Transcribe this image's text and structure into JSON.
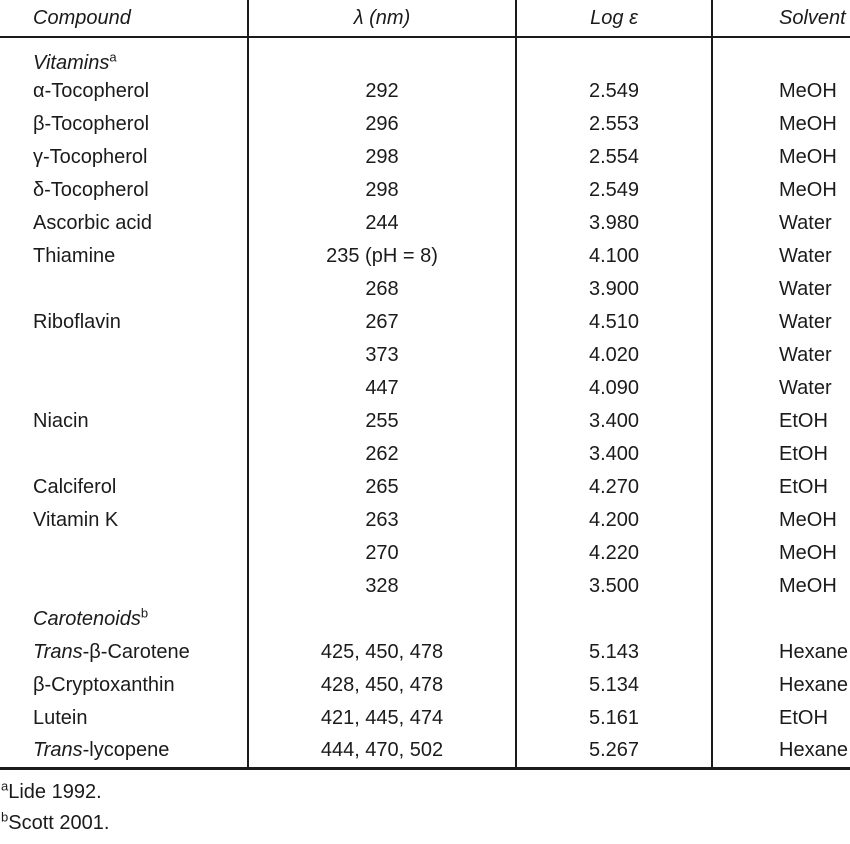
{
  "table": {
    "columns": [
      "Compound",
      "λ (nm)",
      "Log ε",
      "Solvent"
    ],
    "rows": [
      {
        "compound_italic": "Vitamins",
        "marker": "a",
        "compound": "",
        "lambda": "",
        "log_epsilon": "",
        "solvent": ""
      },
      {
        "compound": "α-Tocopherol",
        "lambda": "292",
        "log_epsilon": "2.549",
        "solvent": "MeOH"
      },
      {
        "compound": "β-Tocopherol",
        "lambda": "296",
        "log_epsilon": "2.553",
        "solvent": "MeOH"
      },
      {
        "compound": "γ-Tocopherol",
        "lambda": "298",
        "log_epsilon": "2.554",
        "solvent": "MeOH"
      },
      {
        "compound": "δ-Tocopherol",
        "lambda": "298",
        "log_epsilon": "2.549",
        "solvent": "MeOH"
      },
      {
        "compound": "Ascorbic acid",
        "lambda": "244",
        "log_epsilon": "3.980",
        "solvent": "Water"
      },
      {
        "compound": "Thiamine",
        "lambda": "235 (pH = 8)",
        "log_epsilon": "4.100",
        "solvent": "Water"
      },
      {
        "compound": "",
        "lambda": "268",
        "log_epsilon": "3.900",
        "solvent": "Water"
      },
      {
        "compound": "Riboflavin",
        "lambda": "267",
        "log_epsilon": "4.510",
        "solvent": "Water"
      },
      {
        "compound": "",
        "lambda": "373",
        "log_epsilon": "4.020",
        "solvent": "Water"
      },
      {
        "compound": "",
        "lambda": "447",
        "log_epsilon": "4.090",
        "solvent": "Water"
      },
      {
        "compound": "Niacin",
        "lambda": "255",
        "log_epsilon": "3.400",
        "solvent": "EtOH"
      },
      {
        "compound": "",
        "lambda": "262",
        "log_epsilon": "3.400",
        "solvent": "EtOH"
      },
      {
        "compound": "Calciferol",
        "lambda": "265",
        "log_epsilon": "4.270",
        "solvent": "EtOH"
      },
      {
        "compound": "Vitamin K",
        "lambda": "263",
        "log_epsilon": "4.200",
        "solvent": "MeOH"
      },
      {
        "compound": "",
        "lambda": "270",
        "log_epsilon": "4.220",
        "solvent": "MeOH"
      },
      {
        "compound": "",
        "lambda": "328",
        "log_epsilon": "3.500",
        "solvent": "MeOH"
      },
      {
        "compound_italic": "Carotenoids",
        "marker": "b",
        "compound": "",
        "lambda": "",
        "log_epsilon": "",
        "solvent": ""
      },
      {
        "compound_italic": "Trans",
        "compound": "-β-Carotene",
        "lambda": "425, 450, 478",
        "log_epsilon": "5.143",
        "solvent": "Hexane"
      },
      {
        "compound": "β-Cryptoxanthin",
        "lambda": "428, 450, 478",
        "log_epsilon": "5.134",
        "solvent": "Hexane"
      },
      {
        "compound": "Lutein",
        "lambda": "421, 445, 474",
        "log_epsilon": "5.161",
        "solvent": "EtOH"
      },
      {
        "compound_italic": "Trans",
        "compound": "-lycopene",
        "lambda": "444, 470, 502",
        "log_epsilon": "5.267",
        "solvent": "Hexane"
      }
    ]
  },
  "footnotes": [
    {
      "marker": "a",
      "text": "Lide 1992."
    },
    {
      "marker": "b",
      "text": "Scott 2001."
    }
  ],
  "colors": {
    "text": "#1b1b1b",
    "rule": "#1b1b1b",
    "background": "#ffffff"
  }
}
